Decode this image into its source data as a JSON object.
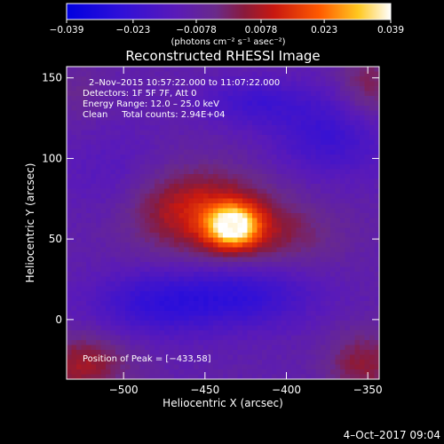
{
  "chart_data": {
    "type": "heatmap",
    "title": "Reconstructed RHESSI Image",
    "xlabel": "Heliocentric X (arcsec)",
    "ylabel": "Heliocentric Y (arcsec)",
    "xlim": [
      -535,
      -343
    ],
    "ylim": [
      -37,
      157
    ],
    "xticks": [
      -500,
      -450,
      -400,
      -350
    ],
    "xtick_labels": [
      "−500",
      "−450",
      "−400",
      "−350"
    ],
    "yticks": [
      0,
      50,
      100,
      150
    ],
    "ytick_labels": [
      "0",
      "50",
      "100",
      "150"
    ],
    "colorbar": {
      "range": [
        -0.039,
        0.039
      ],
      "ticks": [
        -0.039,
        -0.023,
        -0.0078,
        0.0078,
        0.023,
        0.039
      ],
      "tick_labels": [
        "−0.039",
        "−0.023",
        "−0.0078",
        "0.0078",
        "0.023",
        "0.039"
      ],
      "units": "(photons cm⁻² s⁻¹ asec⁻²)"
    },
    "info_lines": [
      "2–Nov–2015 10:57:22.000 to 11:07:22.000",
      "Detectors: 1F 5F 7F, Att 0",
      "Energy Range: 12.0 – 25.0 keV",
      "Clean     Total counts: 2.94E+04"
    ],
    "peak_label": "Position of Peak = [−433,58]",
    "peak": {
      "x": -433,
      "y": 58,
      "value": 0.039
    },
    "sources": [
      {
        "x": -433,
        "y": 58,
        "sx": 11,
        "sy": 9,
        "amp": 0.039
      },
      {
        "x": -455,
        "y": 68,
        "sx": 32,
        "sy": 18,
        "amp": 0.021
      },
      {
        "x": -410,
        "y": 52,
        "sx": 30,
        "sy": 14,
        "amp": 0.01
      },
      {
        "x": -525,
        "y": -28,
        "sx": 20,
        "sy": 13,
        "amp": 0.016
      },
      {
        "x": -352,
        "y": -28,
        "sx": 16,
        "sy": 14,
        "amp": 0.014
      },
      {
        "x": -350,
        "y": 145,
        "sx": 13,
        "sy": 18,
        "amp": 0.012
      },
      {
        "x": -528,
        "y": 140,
        "sx": 12,
        "sy": 12,
        "amp": 0.005
      },
      {
        "x": -480,
        "y": 10,
        "sx": 28,
        "sy": 14,
        "amp": -0.014
      },
      {
        "x": -425,
        "y": 15,
        "sx": 30,
        "sy": 14,
        "amp": -0.014
      },
      {
        "x": -372,
        "y": 115,
        "sx": 26,
        "sy": 18,
        "amp": -0.013
      },
      {
        "x": -420,
        "y": 135,
        "sx": 22,
        "sy": 10,
        "amp": -0.011
      },
      {
        "x": -505,
        "y": 85,
        "sx": 22,
        "sy": 22,
        "amp": -0.006
      }
    ],
    "background": -0.0095,
    "colormap_stops": [
      {
        "v": 0.0,
        "c": "#0000e0"
      },
      {
        "v": 0.17,
        "c": "#3010d8"
      },
      {
        "v": 0.34,
        "c": "#5a1ab8"
      },
      {
        "v": 0.46,
        "c": "#6a2a8a"
      },
      {
        "v": 0.55,
        "c": "#8a1a3a"
      },
      {
        "v": 0.64,
        "c": "#c81810"
      },
      {
        "v": 0.78,
        "c": "#ff5a00"
      },
      {
        "v": 0.9,
        "c": "#ffc820"
      },
      {
        "v": 1.0,
        "c": "#ffffff"
      }
    ]
  },
  "footer": {
    "date": "4–Oct–2017 09:04"
  }
}
